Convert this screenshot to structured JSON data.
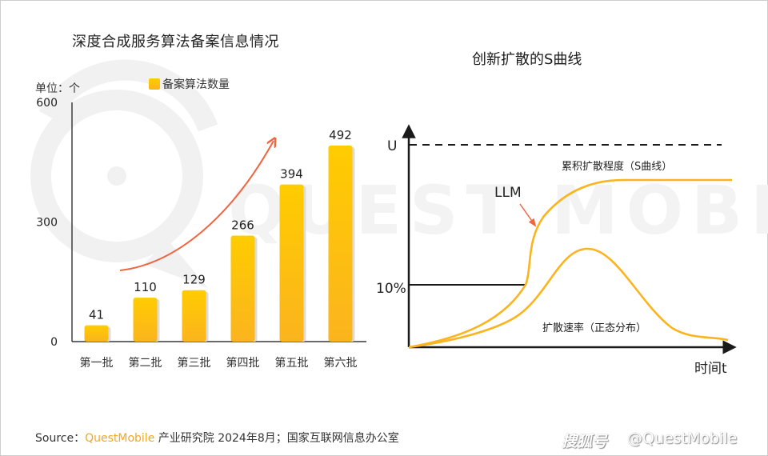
{
  "chart_data": [
    {
      "type": "bar",
      "title": "深度合成服务算法备案信息情况",
      "unit_label": "单位：个",
      "legend": [
        "备案算法数量"
      ],
      "categories": [
        "第一批",
        "第二批",
        "第三批",
        "第四批",
        "第五批",
        "第六批"
      ],
      "series": [
        {
          "name": "备案算法数量",
          "values": [
            41,
            110,
            129,
            266,
            394,
            492
          ]
        }
      ],
      "ylim": [
        0,
        600
      ],
      "yticks": [
        "0",
        "300",
        "600"
      ],
      "xlabel": "",
      "ylabel": "",
      "grid": false,
      "legend_position": "top",
      "annotation": "upward trend arrow",
      "colors": {
        "bar_top": "#ffcc00",
        "bar_bottom": "#fbb41e",
        "arrow": "#f06440"
      }
    },
    {
      "type": "line",
      "title": "创新扩散的S曲线",
      "xlabel": "时间t",
      "y_labels": [
        "U",
        "10%"
      ],
      "series": [
        {
          "name": "累积扩散程度（S曲线）",
          "shape": "s-curve"
        },
        {
          "name": "扩散速率（正态分布）",
          "shape": "bell-curve"
        }
      ],
      "annotations": [
        "LLM"
      ],
      "colors": {
        "curve": "#fbb41e",
        "annotation_arrow": "#f06440",
        "axis": "#1a1a1a"
      }
    }
  ],
  "footer": {
    "source_prefix": "Source：",
    "source_brand": "QuestMobile",
    "source_rest": " 产业研究院 2024年8月；国家互联网信息办公室",
    "credit_platform": "搜狐号",
    "credit_account": "@QuestMobile"
  },
  "watermark": "QUEST MOBILE"
}
